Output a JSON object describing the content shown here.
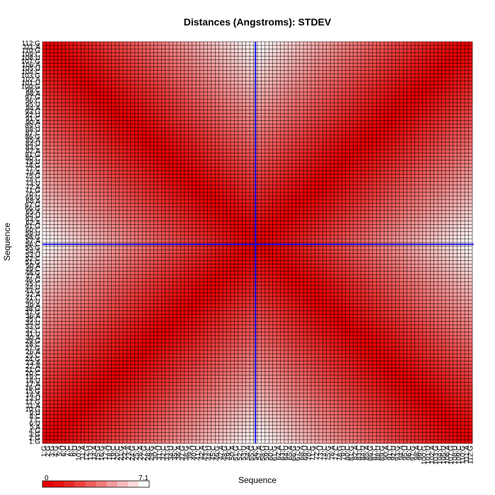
{
  "chart_data": {
    "type": "heatmap",
    "title": "Distances (Angstroms):  STDEV",
    "xlabel": "Sequence",
    "ylabel": "Sequence",
    "n": 112,
    "tick_labels": [
      "1:G",
      "2:G",
      "3:G",
      "4:G",
      "5:A",
      "6:U",
      "7:C",
      "8:C",
      "9:U",
      "10:G",
      "11:A",
      "12:G",
      "13:U",
      "14:A",
      "15:G",
      "16:G",
      "17:A",
      "18:U",
      "19:C",
      "20:C",
      "21:G",
      "22:A",
      "23:A",
      "24:G",
      "25:C",
      "26:A",
      "27:G",
      "28:C",
      "29:G",
      "30:A",
      "31:U",
      "32:C",
      "33:G",
      "34:U",
      "35:C",
      "36:A",
      "37:G",
      "38:G",
      "39:A",
      "40:U",
      "41:C",
      "42:A",
      "43:G",
      "44:U",
      "45:C",
      "46:G",
      "47:A",
      "48:G",
      "49:C",
      "50:A",
      "51:G",
      "52:C",
      "53:U",
      "54:A",
      "55:G",
      "56:C",
      "57:A",
      "58:G",
      "59:U",
      "60:C",
      "61:G",
      "62:A",
      "63:C",
      "64:U",
      "65:A",
      "66:G",
      "67:G",
      "68:A",
      "69:U",
      "70:C",
      "71:G",
      "72:A",
      "73:U",
      "74:C",
      "75:G",
      "76:A",
      "77:C",
      "78:G",
      "79:U",
      "80:C",
      "81:G",
      "82:A",
      "83:C",
      "84:U",
      "85:A",
      "86:G",
      "87:C",
      "88:U",
      "89:G",
      "90:A",
      "91:C",
      "92:U",
      "93:G",
      "94:A",
      "95:U",
      "96:C",
      "97:G",
      "98:A",
      "99:C",
      "100:G",
      "101:U",
      "102:A",
      "103:G",
      "104:C",
      "105:U",
      "106:A",
      "107:G",
      "108:U",
      "109:C",
      "110:G",
      "111:A",
      "112:G"
    ],
    "value_range": [
      0,
      7.1
    ],
    "legend": {
      "min_label": "0",
      "max_label": "7.1",
      "position": "bottom-left"
    },
    "colors": {
      "low": "#e60000",
      "high": "#ffffff",
      "grid": "#000000",
      "highlight": "#0000ff"
    },
    "highlight": {
      "row": 56,
      "column": 56
    },
    "pattern": "symmetric; value increases with distance from both diagonals (0 on the main diagonal and anti-diagonal, up to 7.1 at the edge midpoints)"
  }
}
